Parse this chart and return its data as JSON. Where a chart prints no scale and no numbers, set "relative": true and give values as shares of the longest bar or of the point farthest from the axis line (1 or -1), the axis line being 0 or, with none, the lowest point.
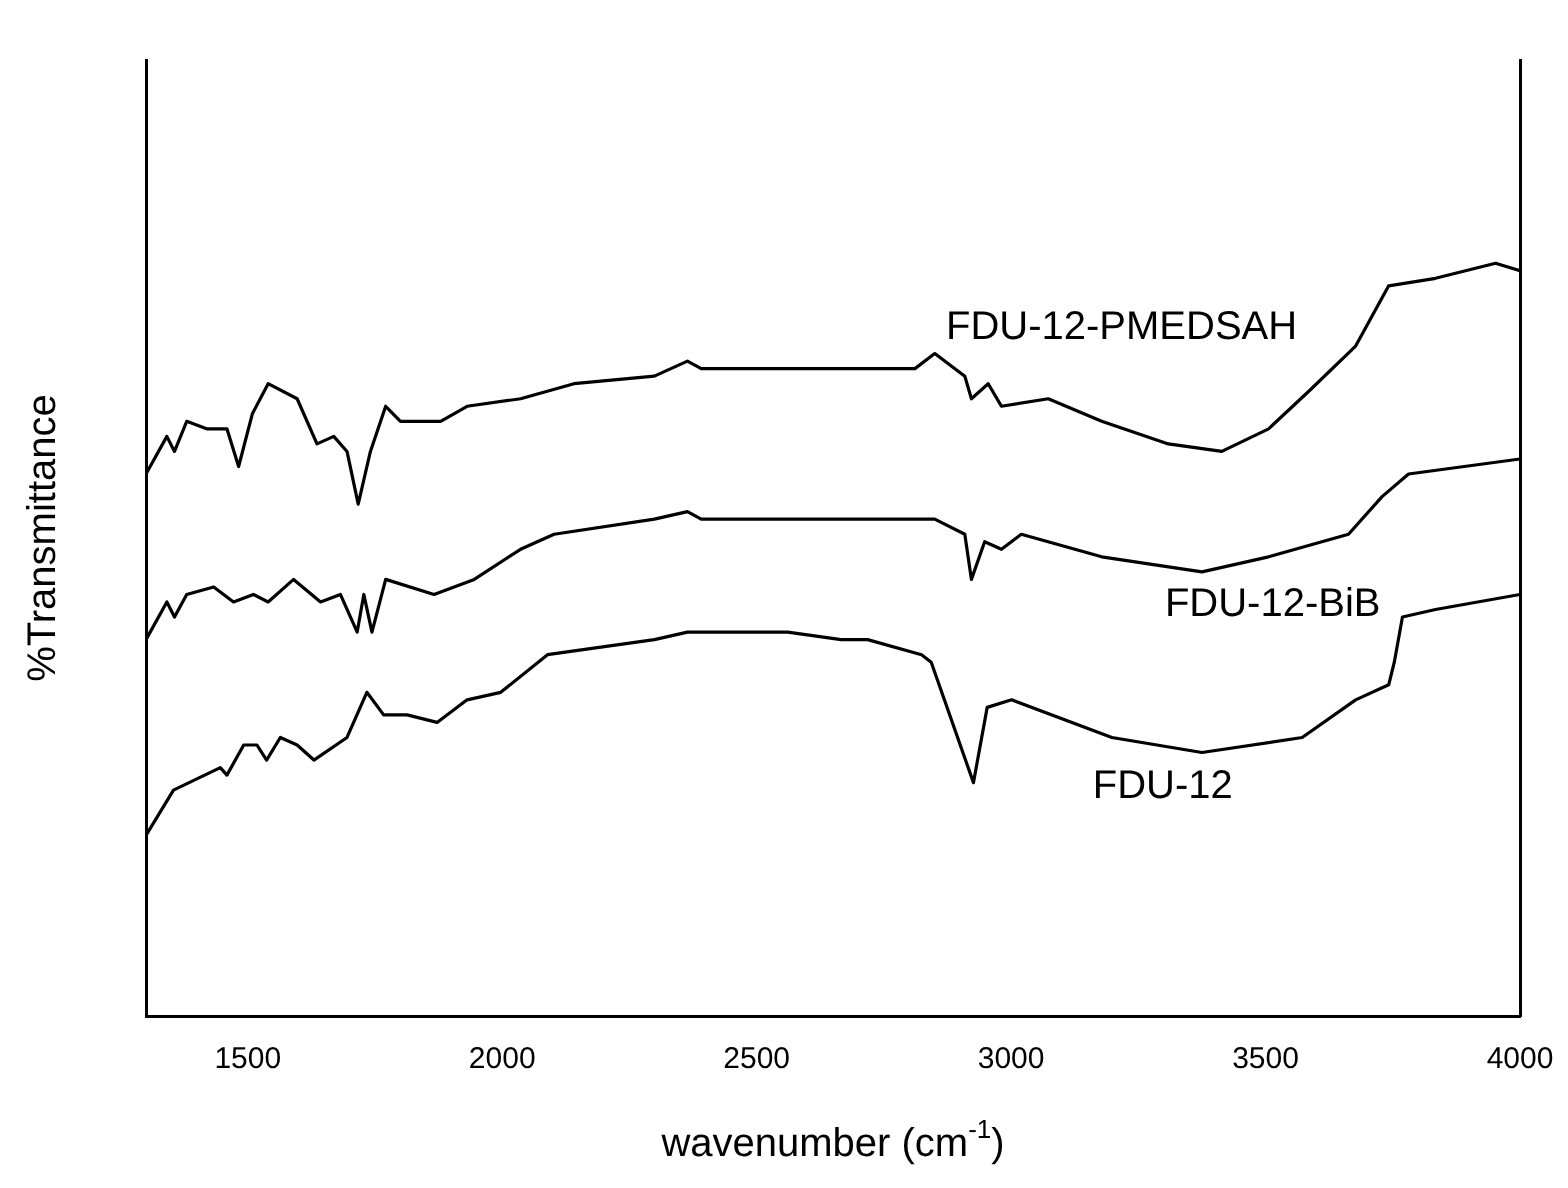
{
  "chart_data": {
    "type": "line",
    "xlabel": "wavenumber (cm$^{-1}$)",
    "ylabel": "%Transmittance",
    "relative": true,
    "xlim": [
      1300,
      4000
    ],
    "xticks": [
      1500,
      2000,
      2500,
      3000,
      3500,
      4000
    ],
    "grid": false,
    "legend": false,
    "marker": "none",
    "line_style": "solid",
    "series": [
      {
        "name": "FDU-12-PMEDSAH",
        "color": "#000000",
        "x": [
          1300,
          1341,
          1356,
          1380,
          1419,
          1459,
          1482,
          1509,
          1540,
          1597,
          1636,
          1669,
          1695,
          1717,
          1741,
          1771,
          1800,
          1879,
          1931,
          2036,
          2141,
          2299,
          2364,
          2391,
          2561,
          2666,
          2718,
          2811,
          2850,
          2909,
          2922,
          2955,
          2981,
          3073,
          3178,
          3309,
          3414,
          3506,
          3585,
          3677,
          3742,
          3834,
          3952,
          4000
        ],
        "values": [
          0.72,
          0.77,
          0.75,
          0.79,
          0.78,
          0.78,
          0.73,
          0.8,
          0.84,
          0.82,
          0.76,
          0.77,
          0.75,
          0.68,
          0.75,
          0.81,
          0.79,
          0.79,
          0.81,
          0.82,
          0.84,
          0.85,
          0.87,
          0.86,
          0.86,
          0.86,
          0.86,
          0.86,
          0.88,
          0.85,
          0.82,
          0.84,
          0.81,
          0.82,
          0.79,
          0.76,
          0.75,
          0.78,
          0.83,
          0.89,
          0.97,
          0.98,
          1,
          0.99
        ]
      },
      {
        "name": "FDU-12-BiB",
        "color": "#000000",
        "x": [
          1300,
          1341,
          1356,
          1380,
          1433,
          1472,
          1511,
          1540,
          1590,
          1643,
          1682,
          1715,
          1728,
          1744,
          1771,
          1866,
          1945,
          2036,
          2102,
          2299,
          2364,
          2391,
          2666,
          2850,
          2909,
          2922,
          2948,
          2981,
          3020,
          3178,
          3375,
          3506,
          3663,
          3729,
          3781,
          4000
        ],
        "values": [
          0.5,
          0.55,
          0.53,
          0.56,
          0.57,
          0.55,
          0.56,
          0.55,
          0.58,
          0.55,
          0.56,
          0.51,
          0.56,
          0.51,
          0.58,
          0.56,
          0.58,
          0.62,
          0.64,
          0.66,
          0.67,
          0.66,
          0.66,
          0.66,
          0.64,
          0.58,
          0.63,
          0.62,
          0.64,
          0.61,
          0.59,
          0.61,
          0.64,
          0.69,
          0.72,
          0.74
        ]
      },
      {
        "name": "FDU-12",
        "color": "#000000",
        "x": [
          1300,
          1354,
          1446,
          1459,
          1492,
          1518,
          1537,
          1564,
          1597,
          1630,
          1695,
          1734,
          1767,
          1813,
          1872,
          1931,
          1997,
          2089,
          2299,
          2364,
          2391,
          2561,
          2666,
          2718,
          2824,
          2843,
          2926,
          2953,
          3001,
          3198,
          3375,
          3572,
          3677,
          3742,
          3753,
          3769,
          3834,
          4000
        ],
        "values": [
          0.24,
          0.3,
          0.33,
          0.32,
          0.36,
          0.36,
          0.34,
          0.37,
          0.36,
          0.34,
          0.37,
          0.43,
          0.4,
          0.4,
          0.39,
          0.42,
          0.43,
          0.48,
          0.5,
          0.51,
          0.51,
          0.51,
          0.5,
          0.5,
          0.48,
          0.47,
          0.31,
          0.41,
          0.42,
          0.37,
          0.35,
          0.37,
          0.42,
          0.44,
          0.47,
          0.53,
          0.54,
          0.56
        ]
      }
    ]
  }
}
